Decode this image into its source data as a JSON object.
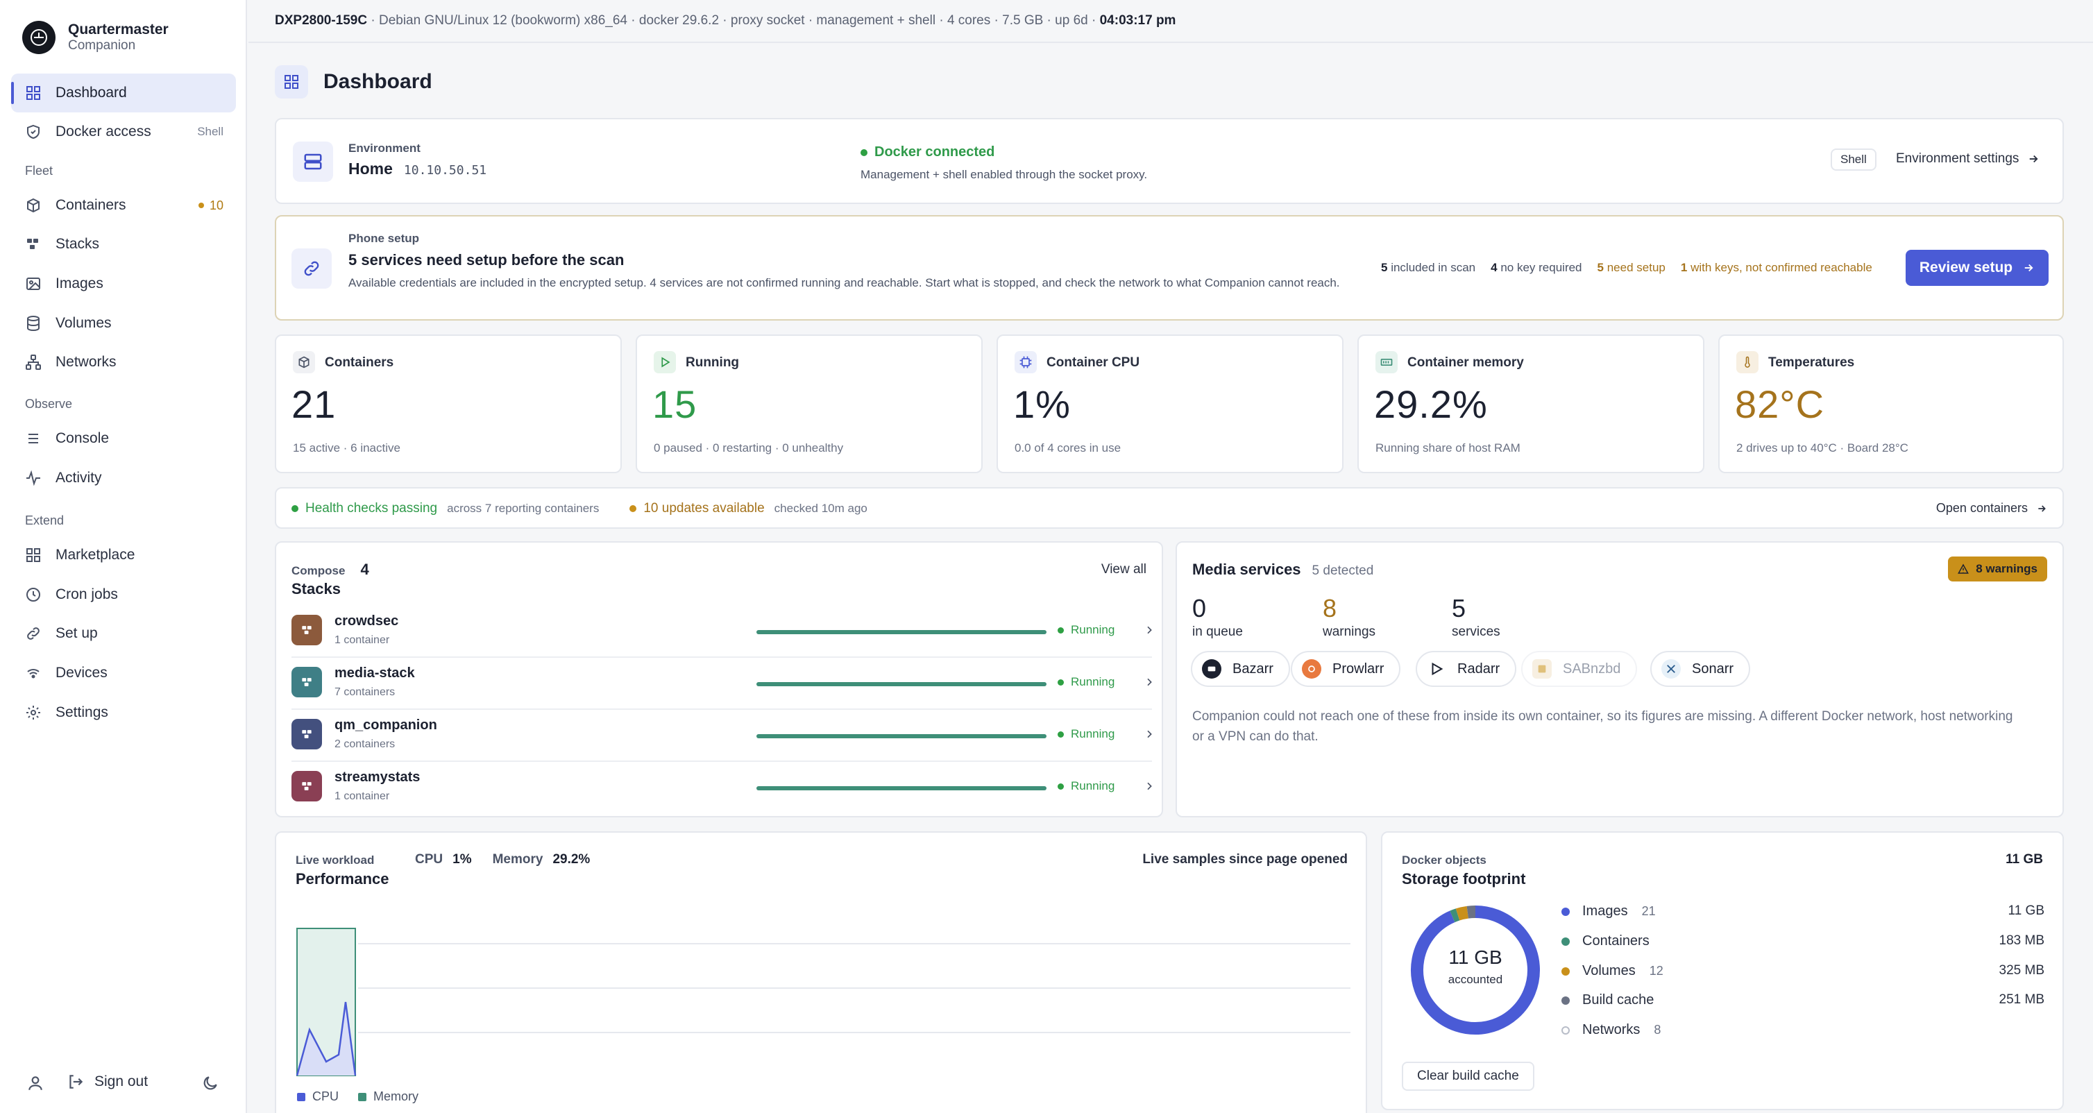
{
  "app": {
    "title": "Quartermaster",
    "subtitle": "Companion"
  },
  "sidebar": {
    "top_items": [
      {
        "label": "Dashboard",
        "icon": "grid-icon",
        "active": true
      },
      {
        "label": "Docker access",
        "icon": "shield-icon",
        "tag": "Shell"
      }
    ],
    "sections": [
      {
        "title": "Fleet",
        "items": [
          {
            "label": "Containers",
            "icon": "box-icon",
            "badge": "10"
          },
          {
            "label": "Stacks",
            "icon": "stacks-icon"
          },
          {
            "label": "Images",
            "icon": "image-icon"
          },
          {
            "label": "Volumes",
            "icon": "database-icon"
          },
          {
            "label": "Networks",
            "icon": "network-icon"
          }
        ]
      },
      {
        "title": "Observe",
        "items": [
          {
            "label": "Console",
            "icon": "console-icon"
          },
          {
            "label": "Activity",
            "icon": "activity-icon"
          }
        ]
      },
      {
        "title": "Extend",
        "items": [
          {
            "label": "Marketplace",
            "icon": "marketplace-icon"
          },
          {
            "label": "Cron jobs",
            "icon": "clock-icon"
          },
          {
            "label": "Set up",
            "icon": "link-icon"
          },
          {
            "label": "Devices",
            "icon": "wifi-icon"
          },
          {
            "label": "Settings",
            "icon": "gear-icon"
          }
        ]
      }
    ],
    "footer": {
      "sign_out": "Sign out"
    }
  },
  "topbar": {
    "host": "DXP2800-159C",
    "details": " · Debian GNU/Linux 12 (bookworm) x86_64 · docker 29.6.2 · proxy socket · management + shell · 4 cores · 7.5 GB · up 6d · ",
    "time": "04:03:17 pm"
  },
  "page": {
    "title": "Dashboard"
  },
  "environment": {
    "label": "Environment",
    "name": "Home",
    "ip": "10.10.50.51",
    "status": "Docker connected",
    "status_detail": "Management + shell enabled through the socket proxy.",
    "shell_button": "Shell",
    "settings_link": "Environment settings"
  },
  "phone_setup": {
    "label": "Phone setup",
    "title": "5 services need setup before the scan",
    "description": "Available credentials are included in the encrypted setup. 4 services are not confirmed running and reachable. Start what is stopped, and check the network to what Companion cannot reach.",
    "stats": [
      {
        "num": "5",
        "text": "included in scan",
        "tone": "neutral"
      },
      {
        "num": "4",
        "text": "no key required",
        "tone": "neutral"
      },
      {
        "num": "5",
        "text": "need setup",
        "tone": "warn"
      },
      {
        "num": "1",
        "text": "with keys, not confirmed reachable",
        "tone": "warn"
      }
    ],
    "button": "Review setup"
  },
  "stats": [
    {
      "title": "Containers",
      "value": "21",
      "sub": "15 active · 6 inactive",
      "icon": "box-icon",
      "color": "#1c2130"
    },
    {
      "title": "Running",
      "value": "15",
      "sub": "0 paused · 0 restarting · 0 unhealthy",
      "icon": "play-icon",
      "color": "#2f9a4a"
    },
    {
      "title": "Container CPU",
      "value": "1%",
      "sub": "0.0 of 4 cores in use",
      "icon": "cpu-icon",
      "color": "#1c2130"
    },
    {
      "title": "Container memory",
      "value": "29.2%",
      "sub": "Running share of host RAM",
      "icon": "memory-icon",
      "color": "#1c2130"
    },
    {
      "title": "Temperatures",
      "value": "82°C",
      "sub": "2 drives up to 40°C · Board 28°C",
      "icon": "thermometer-icon",
      "color": "#a5731c"
    }
  ],
  "health": {
    "status": "Health checks passing",
    "status_detail": "across 7 reporting containers",
    "updates": "10 updates available",
    "updates_detail": "checked 10m ago",
    "link": "Open containers"
  },
  "stacks": {
    "label": "Compose",
    "count": "4",
    "title": "Stacks",
    "view_all": "View all",
    "items": [
      {
        "name": "crowdsec",
        "sub": "1 container",
        "status": "Running",
        "color": "#8c5a3c"
      },
      {
        "name": "media-stack",
        "sub": "7 containers",
        "status": "Running",
        "color": "#3f7f86"
      },
      {
        "name": "qm_companion",
        "sub": "2 containers",
        "status": "Running",
        "color": "#43507e"
      },
      {
        "name": "streamystats",
        "sub": "1 container",
        "status": "Running",
        "color": "#8a3f54"
      }
    ]
  },
  "media": {
    "title": "Media services",
    "detected": "5 detected",
    "warnings_badge": "8 warnings",
    "metrics": [
      {
        "value": "0",
        "label": "in queue",
        "tone": "neutral"
      },
      {
        "value": "8",
        "label": "warnings",
        "tone": "warn"
      },
      {
        "value": "5",
        "label": "services",
        "tone": "neutral"
      }
    ],
    "services": [
      {
        "name": "Bazarr",
        "icon": "bazarr-icon",
        "disabled": false
      },
      {
        "name": "Prowlarr",
        "icon": "prowlarr-icon",
        "disabled": false
      },
      {
        "name": "Radarr",
        "icon": "radarr-icon",
        "disabled": false
      },
      {
        "name": "SABnzbd",
        "icon": "sabnzbd-icon",
        "disabled": true
      },
      {
        "name": "Sonarr",
        "icon": "sonarr-icon",
        "disabled": false
      }
    ],
    "note": "Companion could not reach one of these from inside its own container, so its figures are missing. A different Docker network, host networking or a VPN can do that."
  },
  "performance": {
    "label": "Live workload",
    "title": "Performance",
    "cpu_label": "CPU",
    "cpu_value": "1%",
    "mem_label": "Memory",
    "mem_value": "29.2%",
    "note": "Live samples since page opened",
    "legend_cpu": "CPU",
    "legend_mem": "Memory"
  },
  "storage": {
    "label": "Docker objects",
    "title": "Storage footprint",
    "total": "11 GB",
    "center_value": "11 GB",
    "center_label": "accounted",
    "button": "Clear build cache",
    "items": [
      {
        "name": "Images",
        "count": "21",
        "value": "11 GB",
        "color": "#4a5bd6"
      },
      {
        "name": "Containers",
        "count": "",
        "value": "183 MB",
        "color": "#3e8f78"
      },
      {
        "name": "Volumes",
        "count": "12",
        "value": "325 MB",
        "color": "#c9901a"
      },
      {
        "name": "Build cache",
        "count": "",
        "value": "251 MB",
        "color": "#6b7284"
      },
      {
        "name": "Networks",
        "count": "8",
        "value": "",
        "color": "#ffffff"
      }
    ]
  },
  "chart_data": {
    "type": "pie",
    "categories": [
      "Images",
      "Containers",
      "Volumes",
      "Build cache"
    ],
    "values": [
      11000,
      183,
      325,
      251
    ],
    "title": "Storage footprint",
    "units": "MB"
  }
}
